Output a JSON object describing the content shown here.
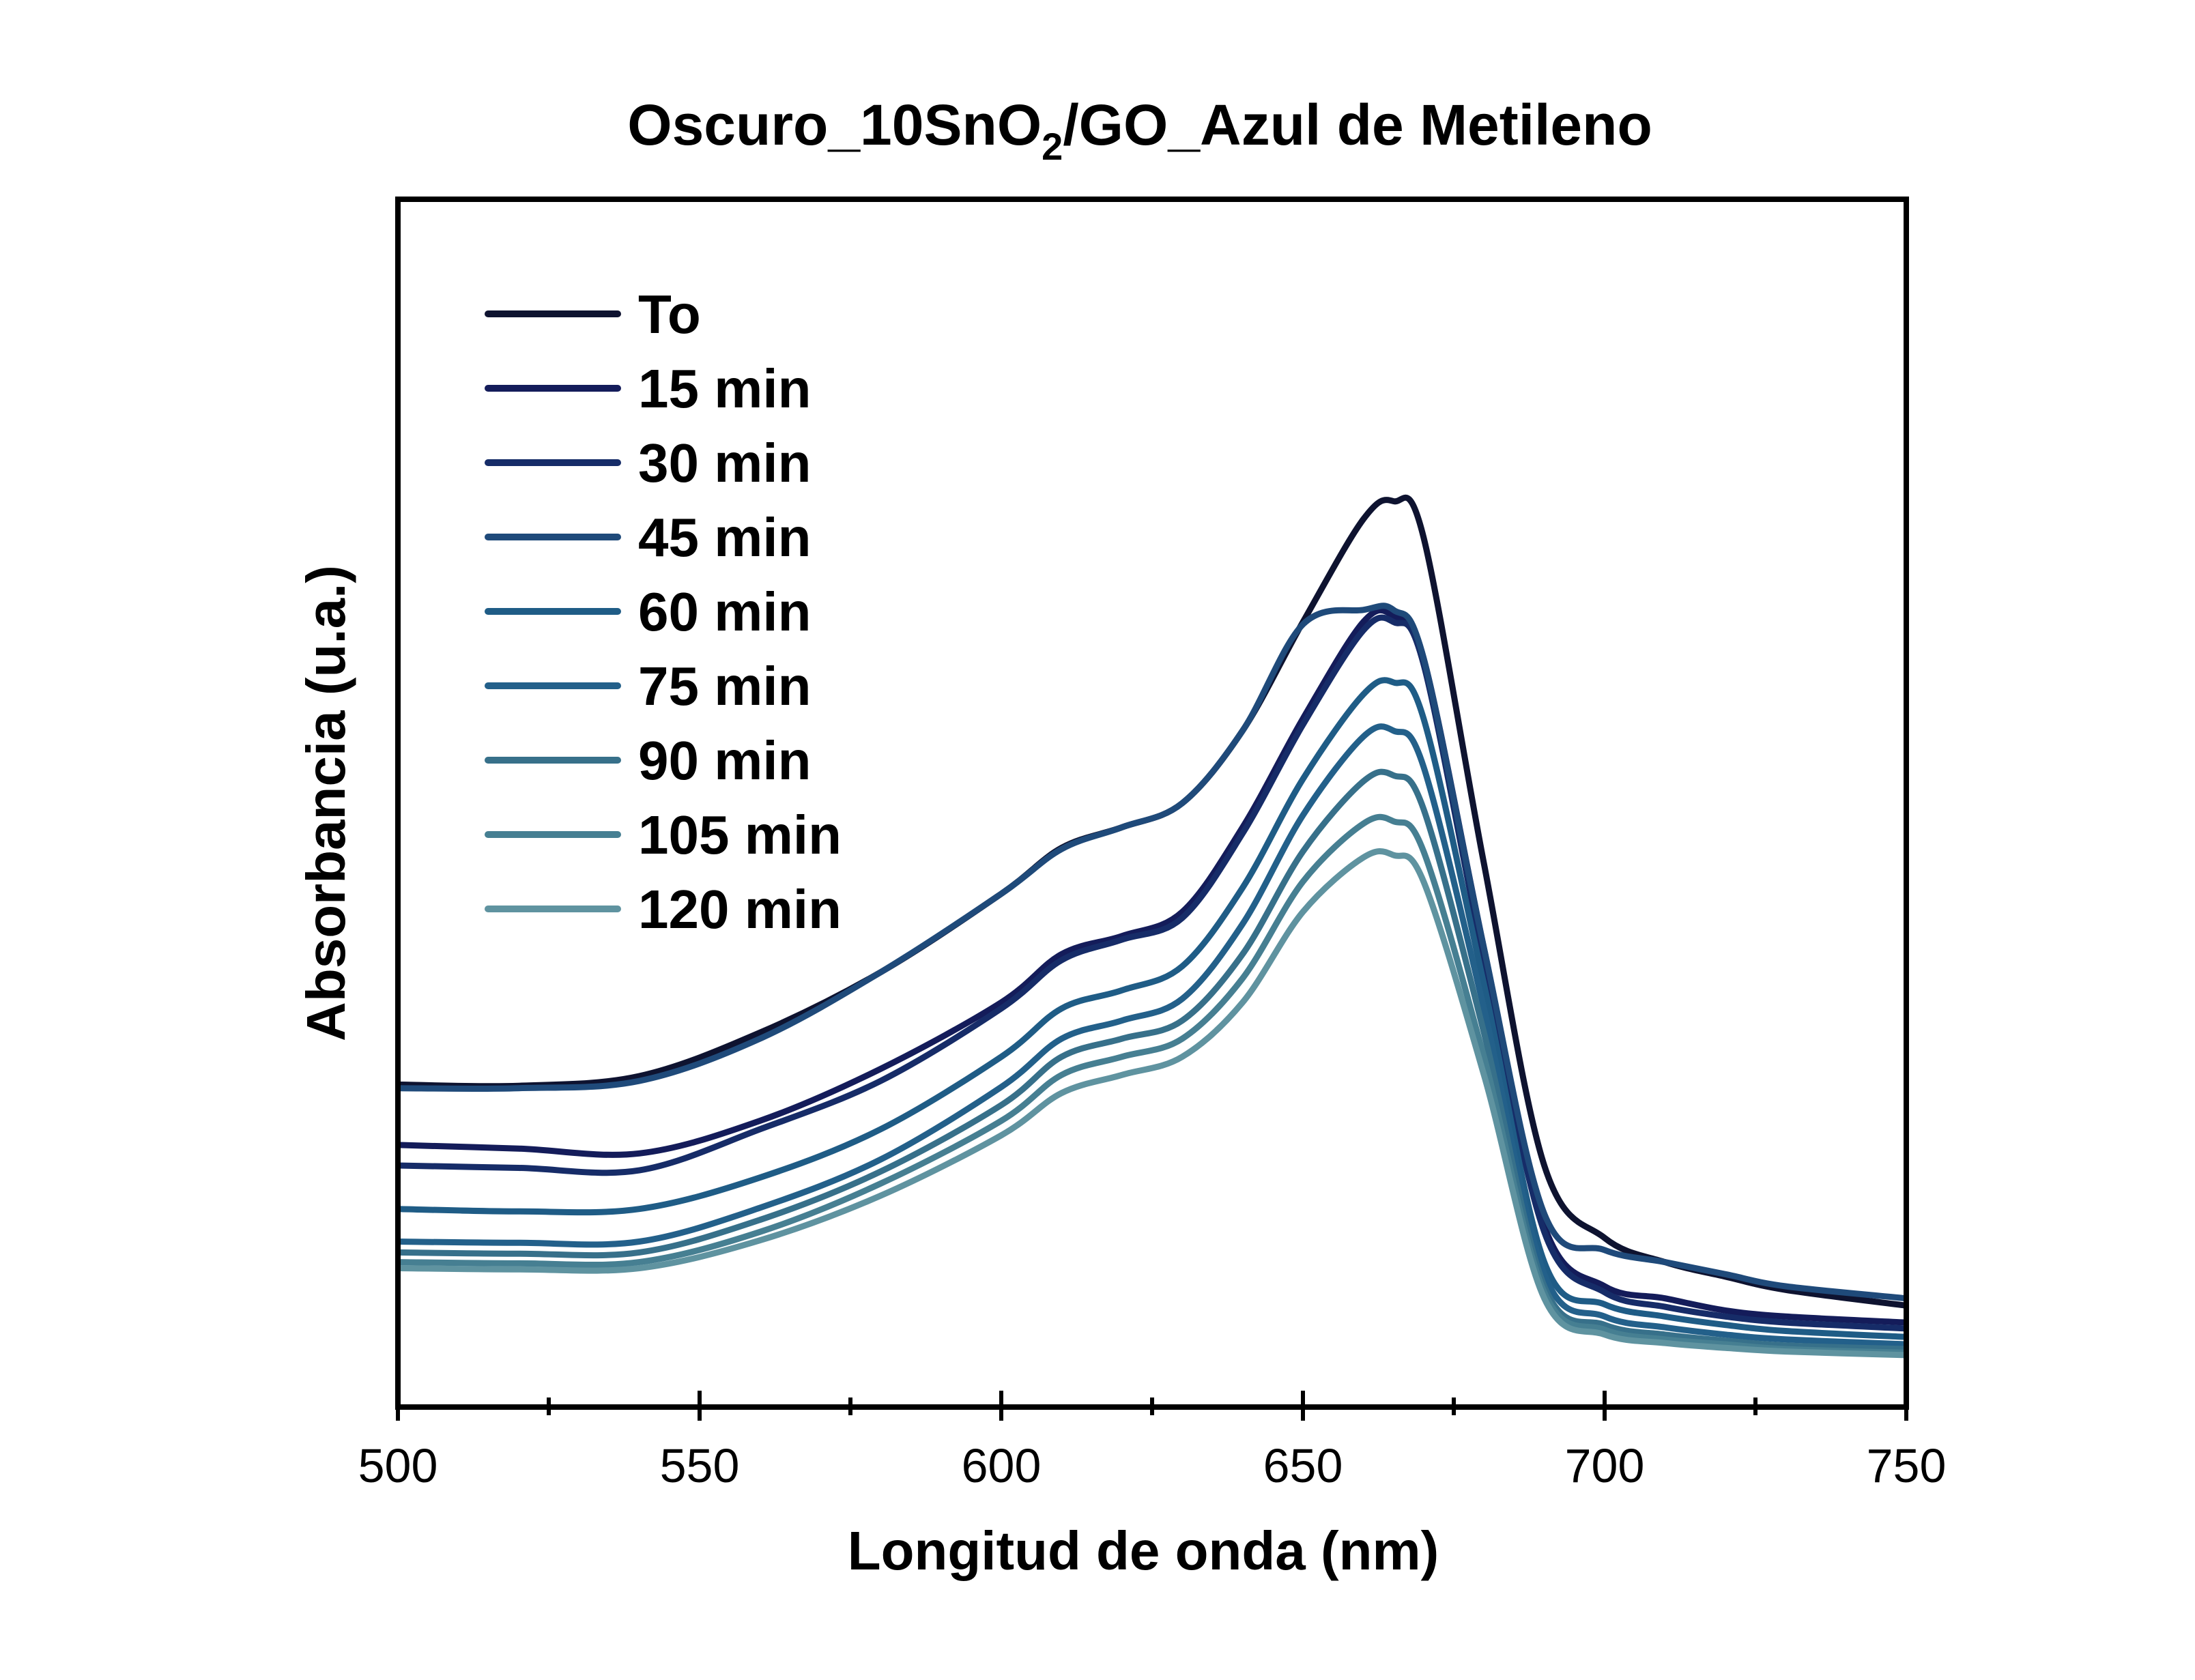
{
  "chart_data": {
    "type": "line",
    "title_main": "Oscuro_10SnO",
    "title_sub": "2",
    "title_rest": "/GO_Azul de Metileno",
    "xlabel": "Longitud de onda (nm)",
    "ylabel": "Absorbancia (u.a.)",
    "xlim": [
      500,
      750
    ],
    "ylim": [
      0,
      1
    ],
    "x_ticks": [
      500,
      550,
      600,
      650,
      700,
      750
    ],
    "y_ticks_shown": false,
    "grid": false,
    "legend_position": "top-left",
    "x": [
      500,
      520,
      540,
      560,
      580,
      600,
      610,
      620,
      630,
      640,
      650,
      660,
      665,
      670,
      680,
      690,
      700,
      710,
      720,
      730,
      750
    ],
    "series": [
      {
        "name": "To",
        "color": "#0e1330",
        "values": [
          0.267,
          0.266,
          0.274,
          0.31,
          0.36,
          0.425,
          0.463,
          0.48,
          0.5,
          0.56,
          0.65,
          0.735,
          0.75,
          0.72,
          0.45,
          0.2,
          0.14,
          0.12,
          0.108,
          0.097,
          0.084
        ]
      },
      {
        "name": "15 min",
        "color": "#141c5a",
        "values": [
          0.217,
          0.214,
          0.21,
          0.237,
          0.28,
          0.335,
          0.375,
          0.39,
          0.41,
          0.48,
          0.57,
          0.65,
          0.655,
          0.62,
          0.38,
          0.15,
          0.1,
          0.09,
          0.08,
          0.075,
          0.07
        ]
      },
      {
        "name": "30 min",
        "color": "#162c68",
        "values": [
          0.2,
          0.198,
          0.196,
          0.23,
          0.27,
          0.33,
          0.37,
          0.387,
          0.405,
          0.475,
          0.565,
          0.643,
          0.65,
          0.615,
          0.37,
          0.145,
          0.095,
          0.083,
          0.075,
          0.07,
          0.065
        ]
      },
      {
        "name": "45 min",
        "color": "#1f4a7a",
        "values": [
          0.264,
          0.264,
          0.27,
          0.305,
          0.36,
          0.425,
          0.462,
          0.48,
          0.5,
          0.56,
          0.648,
          0.66,
          0.66,
          0.62,
          0.38,
          0.16,
          0.13,
          0.12,
          0.11,
          0.1,
          0.09
        ]
      },
      {
        "name": "60 min",
        "color": "#1f5c86",
        "values": [
          0.164,
          0.162,
          0.164,
          0.19,
          0.23,
          0.29,
          0.33,
          0.345,
          0.365,
          0.43,
          0.52,
          0.59,
          0.6,
          0.57,
          0.35,
          0.12,
          0.085,
          0.075,
          0.068,
          0.063,
          0.058
        ]
      },
      {
        "name": "75 min",
        "color": "#23608a",
        "values": [
          0.137,
          0.136,
          0.137,
          0.165,
          0.205,
          0.265,
          0.305,
          0.32,
          0.338,
          0.4,
          0.49,
          0.555,
          0.56,
          0.53,
          0.33,
          0.11,
          0.075,
          0.066,
          0.06,
          0.056,
          0.052
        ]
      },
      {
        "name": "90 min",
        "color": "#37708a",
        "values": [
          0.128,
          0.127,
          0.128,
          0.155,
          0.195,
          0.25,
          0.29,
          0.305,
          0.32,
          0.375,
          0.46,
          0.518,
          0.523,
          0.495,
          0.31,
          0.1,
          0.068,
          0.06,
          0.055,
          0.051,
          0.048
        ]
      },
      {
        "name": "105 min",
        "color": "#467f92",
        "values": [
          0.12,
          0.119,
          0.12,
          0.145,
          0.185,
          0.237,
          0.275,
          0.29,
          0.305,
          0.355,
          0.435,
          0.483,
          0.485,
          0.46,
          0.29,
          0.095,
          0.064,
          0.056,
          0.052,
          0.048,
          0.045
        ]
      },
      {
        "name": "120 min",
        "color": "#5f93a0",
        "values": [
          0.115,
          0.114,
          0.115,
          0.138,
          0.175,
          0.225,
          0.26,
          0.275,
          0.29,
          0.335,
          0.41,
          0.455,
          0.457,
          0.435,
          0.275,
          0.09,
          0.06,
          0.053,
          0.049,
          0.046,
          0.043
        ]
      }
    ]
  }
}
